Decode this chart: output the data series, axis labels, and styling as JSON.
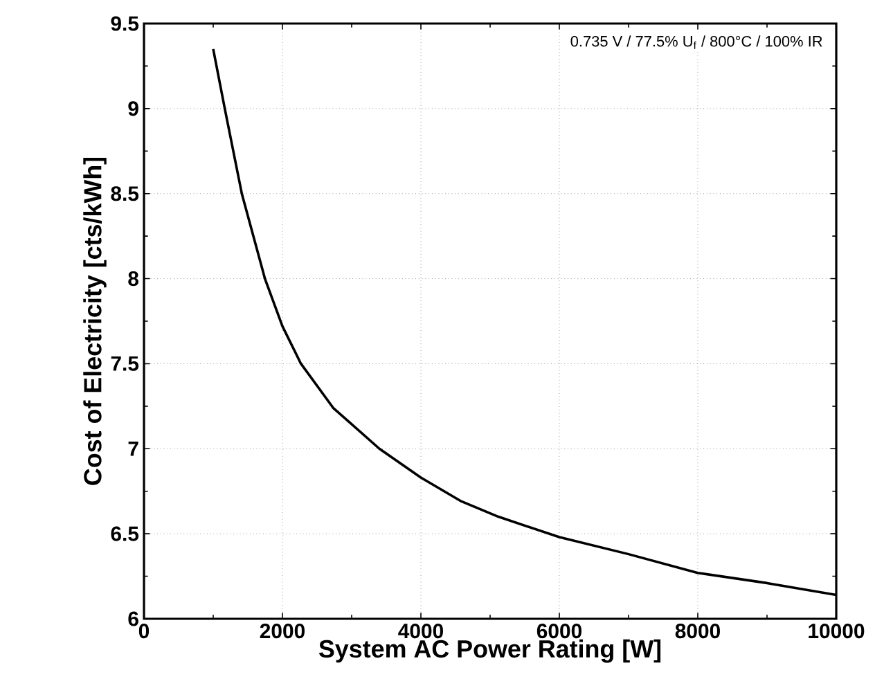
{
  "chart_data": {
    "type": "line",
    "xlabel": "System AC Power Rating [W]",
    "ylabel": "Cost of Electricity [cts/kWh]",
    "annotations": [
      "0.735 V / 77.5% U$_{f}$ / 800°C / 100% IR"
    ],
    "x": [
      1000,
      1167,
      1413,
      1747,
      2000,
      2267,
      2733,
      3400,
      4000,
      4587,
      5120,
      6000,
      7000,
      8000,
      9000,
      10000
    ],
    "series": [
      {
        "color": "#000000",
        "values": [
          9.35,
          9.0,
          8.5,
          8.0,
          7.72,
          7.5,
          7.24,
          7.0,
          6.83,
          6.69,
          6.6,
          6.48,
          6.38,
          6.27,
          6.21,
          6.14
        ]
      }
    ],
    "xlim": [
      0,
      10000
    ],
    "ylim": [
      6,
      9.5
    ],
    "xticks": [
      0,
      2000,
      4000,
      6000,
      8000,
      10000
    ],
    "yticks": [
      6,
      6.5,
      7,
      7.5,
      8,
      8.5,
      9,
      9.5
    ],
    "grid": true,
    "marker": "none",
    "line_style": "solid"
  }
}
